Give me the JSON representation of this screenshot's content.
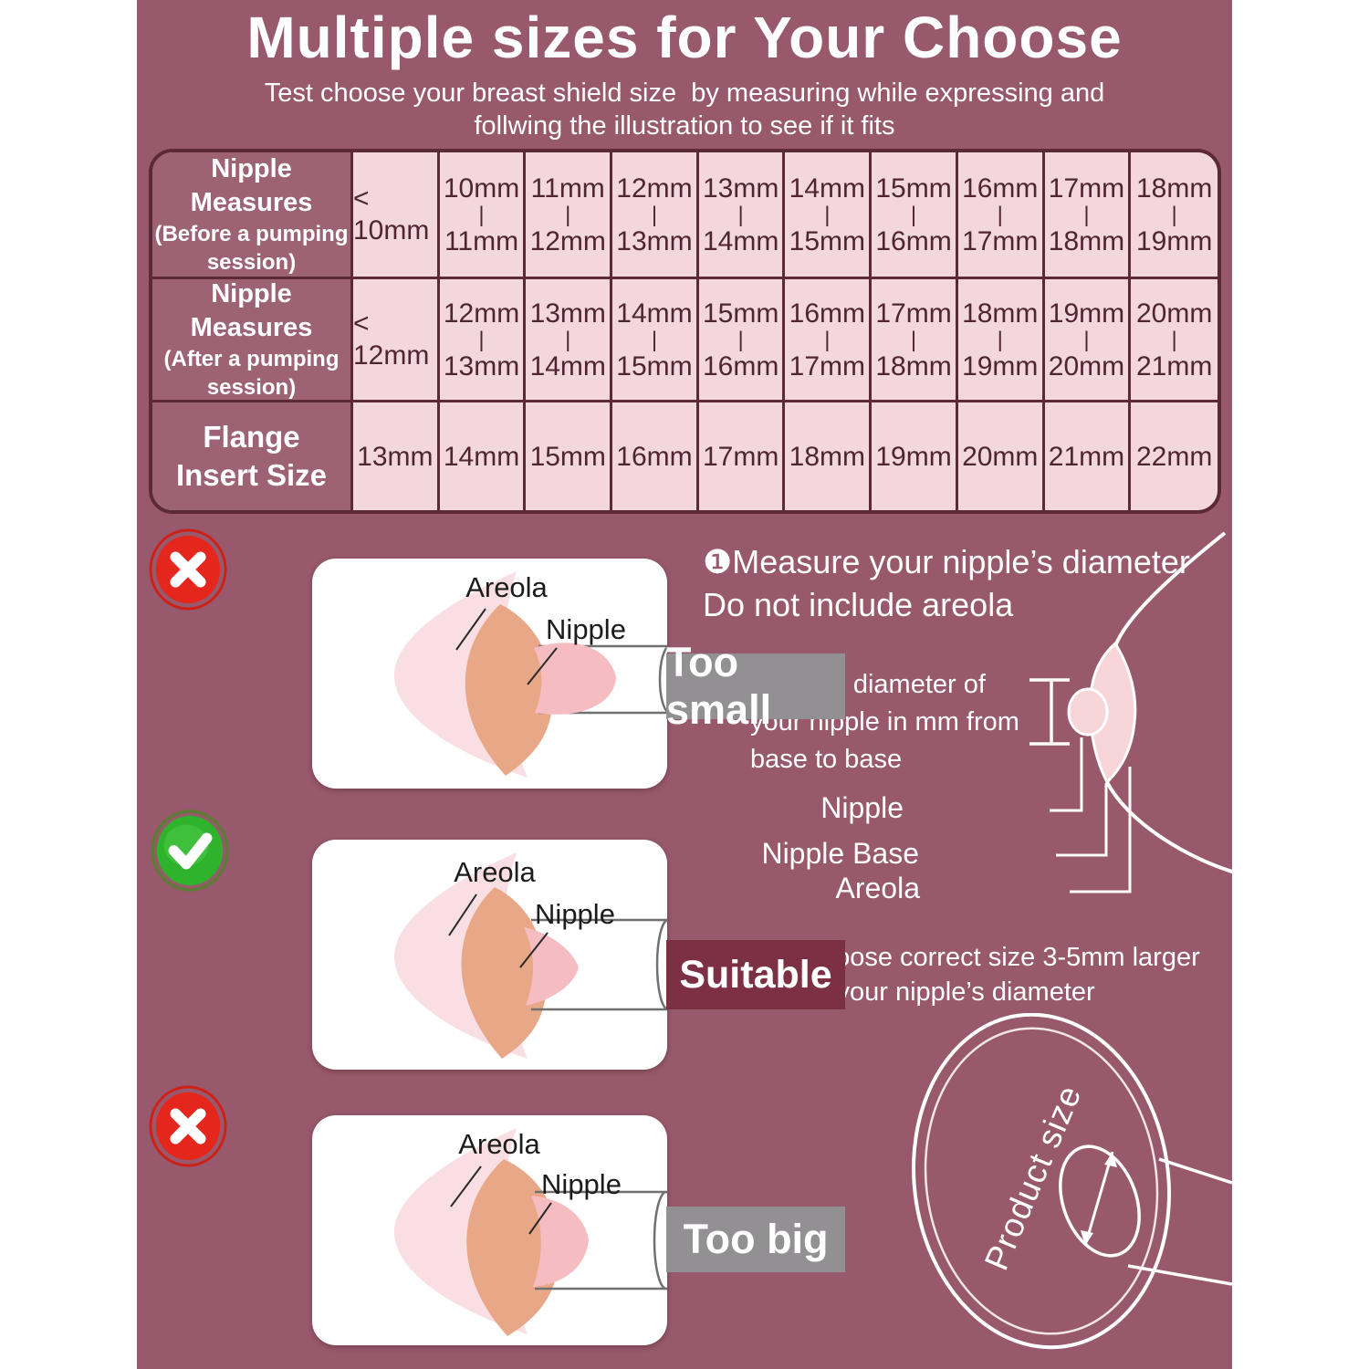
{
  "header": {
    "title": "Multiple sizes for Your Choose",
    "subtitle_line1": "Test choose your breast shield size  by measuring while expressing and",
    "subtitle_line2": "follwing the illustration to see if it fits"
  },
  "size_table": {
    "rows": [
      {
        "label_main": "Nipple Measures",
        "label_sub": [
          "(Before a pumping",
          "session)"
        ],
        "big_label": false,
        "cells": [
          [
            "< 10mm"
          ],
          [
            "10mm",
            "|",
            "11mm"
          ],
          [
            "11mm",
            "|",
            "12mm"
          ],
          [
            "12mm",
            "|",
            "13mm"
          ],
          [
            "13mm",
            "|",
            "14mm"
          ],
          [
            "14mm",
            "|",
            "15mm"
          ],
          [
            "15mm",
            "|",
            "16mm"
          ],
          [
            "16mm",
            "|",
            "17mm"
          ],
          [
            "17mm",
            "|",
            "18mm"
          ],
          [
            "18mm",
            "|",
            "19mm"
          ]
        ]
      },
      {
        "label_main": "Nipple Measures",
        "label_sub": [
          "(After a pumping",
          "session)"
        ],
        "big_label": false,
        "cells": [
          [
            "< 12mm"
          ],
          [
            "12mm",
            "|",
            "13mm"
          ],
          [
            "13mm",
            "|",
            "14mm"
          ],
          [
            "14mm",
            "|",
            "15mm"
          ],
          [
            "15mm",
            "|",
            "16mm"
          ],
          [
            "16mm",
            "|",
            "17mm"
          ],
          [
            "17mm",
            "|",
            "18mm"
          ],
          [
            "18mm",
            "|",
            "19mm"
          ],
          [
            "19mm",
            "|",
            "20mm"
          ],
          [
            "20mm",
            "|",
            "21mm"
          ]
        ]
      },
      {
        "label_main": "Flange",
        "label_sub": [
          "Insert Size"
        ],
        "big_label": true,
        "cells": [
          [
            "13mm"
          ],
          [
            "14mm"
          ],
          [
            "15mm"
          ],
          [
            "16mm"
          ],
          [
            "17mm"
          ],
          [
            "18mm"
          ],
          [
            "19mm"
          ],
          [
            "20mm"
          ],
          [
            "21mm"
          ],
          [
            "22mm"
          ]
        ]
      }
    ]
  },
  "fit_cards": [
    {
      "verdict": "wrong",
      "label": "Too small",
      "areola": "Areola",
      "nipple": "Nipple"
    },
    {
      "verdict": "right",
      "label": "Suitable",
      "areola": "Areola",
      "nipple": "Nipple"
    },
    {
      "verdict": "wrong",
      "label": "Too big",
      "areola": "Areola",
      "nipple": "Nipple"
    }
  ],
  "instructions": {
    "step1_line1": "❶Measure your nipple’s diameter",
    "step1_line2": "Do not include areola",
    "find_line1": "Find the diameter of",
    "find_line2": "your nipple in mm from",
    "find_line3": "base to base",
    "label_nipple": "Nipple",
    "label_nipple_base": "Nipple Base",
    "label_areola": "Areola",
    "step2_line1": "❷Choose correct size 3-5mm larger",
    "step2_line2": "than your nipple’s diameter",
    "product_size": "Product size"
  },
  "icons": {
    "reject": "x-icon",
    "accept": "check-icon"
  },
  "colors": {
    "page_background": "#97596b",
    "table_cell_pink": "#f2d7dd",
    "table_border": "#5c2938",
    "cell_text": "#4f2433",
    "gray_label": "#929092",
    "wine_label": "#7d3044",
    "reject_red": "#e5261d",
    "accept_green": "#2fb32c"
  }
}
